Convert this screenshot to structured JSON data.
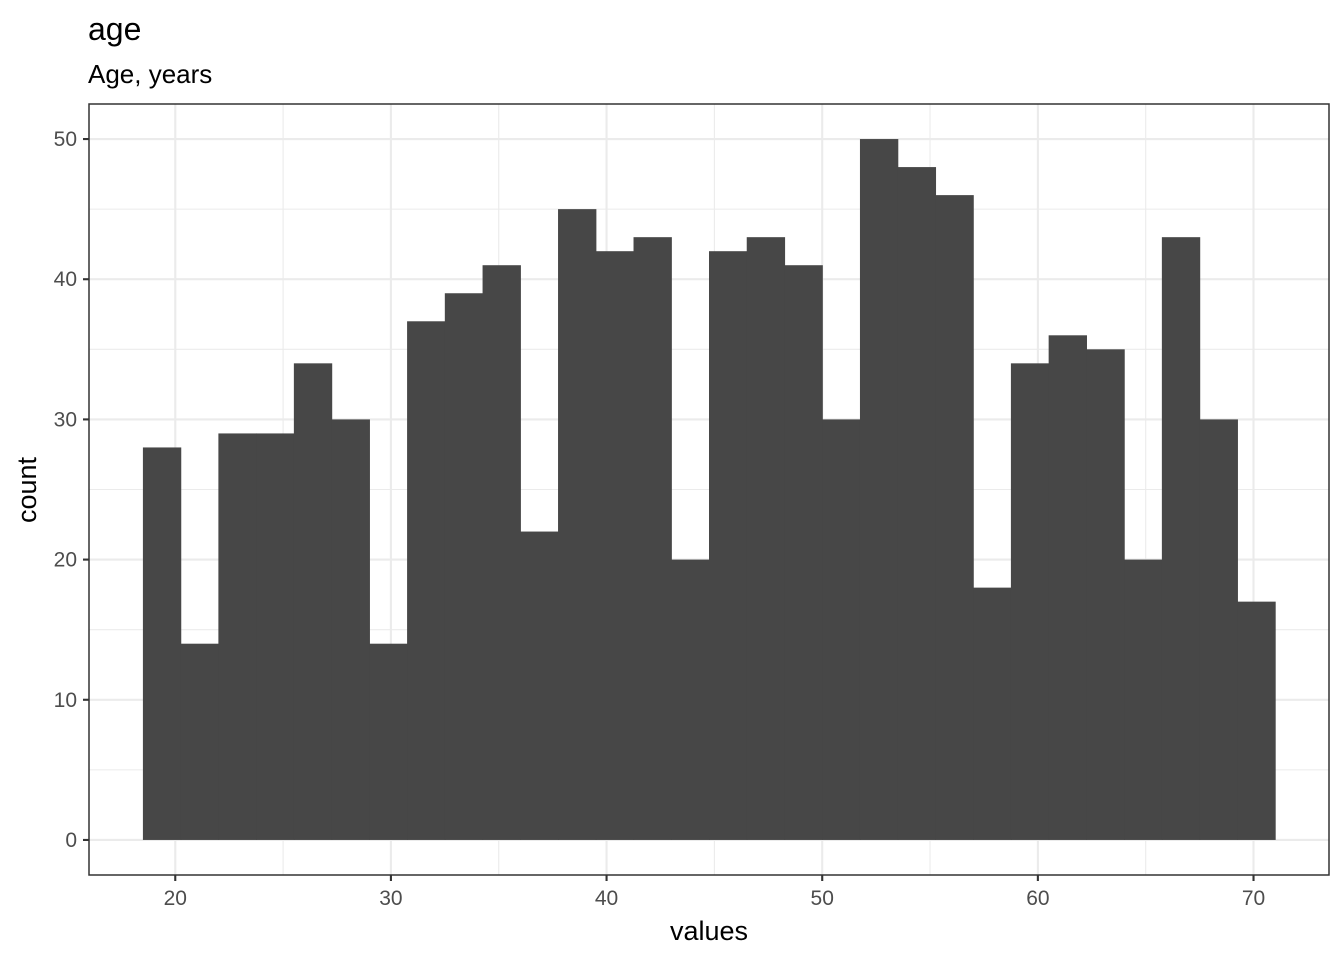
{
  "chart_data": {
    "type": "bar",
    "title": "age",
    "subtitle": "Age, years",
    "xlabel": "values",
    "ylabel": "count",
    "xlim": [
      16.0,
      73.5
    ],
    "ylim": [
      -2.5,
      52.5
    ],
    "x_ticks": [
      20,
      30,
      40,
      50,
      60,
      70
    ],
    "y_ticks": [
      0,
      10,
      20,
      30,
      40,
      50
    ],
    "x_tick_labels": [
      "20",
      "30",
      "40",
      "50",
      "60",
      "70"
    ],
    "y_tick_labels": [
      "0",
      "10",
      "20",
      "30",
      "40",
      "50"
    ],
    "x_minor_ticks": [
      25,
      35,
      45,
      55,
      65
    ],
    "y_minor_ticks": [
      5,
      15,
      25,
      35,
      45
    ],
    "grid": true,
    "bar_color": "#474747",
    "bins": [
      {
        "x0": 18.5,
        "x1": 20.25,
        "count": 28
      },
      {
        "x0": 20.25,
        "x1": 22.0,
        "count": 14
      },
      {
        "x0": 22.0,
        "x1": 23.75,
        "count": 29
      },
      {
        "x0": 23.75,
        "x1": 25.5,
        "count": 29
      },
      {
        "x0": 25.5,
        "x1": 27.25,
        "count": 34
      },
      {
        "x0": 27.25,
        "x1": 29.0,
        "count": 30
      },
      {
        "x0": 29.0,
        "x1": 30.75,
        "count": 14
      },
      {
        "x0": 30.75,
        "x1": 32.5,
        "count": 37
      },
      {
        "x0": 32.5,
        "x1": 34.25,
        "count": 39
      },
      {
        "x0": 34.25,
        "x1": 36.0,
        "count": 41
      },
      {
        "x0": 36.0,
        "x1": 37.75,
        "count": 22
      },
      {
        "x0": 37.75,
        "x1": 39.5,
        "count": 45
      },
      {
        "x0": 39.5,
        "x1": 41.25,
        "count": 42
      },
      {
        "x0": 41.25,
        "x1": 43.0,
        "count": 43
      },
      {
        "x0": 43.0,
        "x1": 44.75,
        "count": 20
      },
      {
        "x0": 44.75,
        "x1": 46.5,
        "count": 42
      },
      {
        "x0": 46.5,
        "x1": 48.25,
        "count": 43
      },
      {
        "x0": 48.25,
        "x1": 50.0,
        "count": 41
      },
      {
        "x0": 50.0,
        "x1": 51.75,
        "count": 30
      },
      {
        "x0": 51.75,
        "x1": 53.5,
        "count": 50
      },
      {
        "x0": 53.5,
        "x1": 55.25,
        "count": 48
      },
      {
        "x0": 55.25,
        "x1": 57.0,
        "count": 46
      },
      {
        "x0": 57.0,
        "x1": 58.75,
        "count": 18
      },
      {
        "x0": 58.75,
        "x1": 60.5,
        "count": 34
      },
      {
        "x0": 60.5,
        "x1": 62.25,
        "count": 36
      },
      {
        "x0": 62.25,
        "x1": 64.0,
        "count": 35
      },
      {
        "x0": 64.0,
        "x1": 65.75,
        "count": 20
      },
      {
        "x0": 65.75,
        "x1": 67.5,
        "count": 43
      },
      {
        "x0": 67.5,
        "x1": 69.25,
        "count": 30
      },
      {
        "x0": 69.25,
        "x1": 71.0,
        "count": 17
      }
    ]
  }
}
